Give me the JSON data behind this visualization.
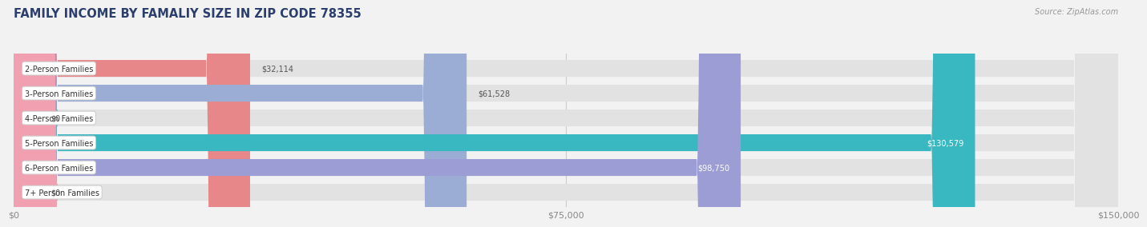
{
  "title": "FAMILY INCOME BY FAMALIY SIZE IN ZIP CODE 78355",
  "source": "Source: ZipAtlas.com",
  "categories": [
    "2-Person Families",
    "3-Person Families",
    "4-Person Families",
    "5-Person Families",
    "6-Person Families",
    "7+ Person Families"
  ],
  "values": [
    32114,
    61528,
    0,
    130579,
    98750,
    0
  ],
  "bar_colors": [
    "#e8878a",
    "#9badd4",
    "#b49bc8",
    "#3ab8c2",
    "#9b9dd4",
    "#f0a0b0"
  ],
  "label_colors": [
    "#555555",
    "#555555",
    "#555555",
    "#ffffff",
    "#ffffff",
    "#555555"
  ],
  "value_labels": [
    "$32,114",
    "$61,528",
    "$0",
    "$130,579",
    "$98,750",
    "$0"
  ],
  "xlim": [
    0,
    150000
  ],
  "xticks": [
    0,
    75000,
    150000
  ],
  "xticklabels": [
    "$0",
    "$75,000",
    "$150,000"
  ],
  "background_color": "#f2f2f2",
  "bar_bg_color": "#e2e2e2",
  "title_color": "#2c3e6b",
  "source_color": "#999999",
  "title_fontsize": 10.5,
  "bar_height": 0.68,
  "cat_label_fontsize": 7,
  "val_label_fontsize": 7,
  "figsize": [
    14.06,
    3.05
  ]
}
